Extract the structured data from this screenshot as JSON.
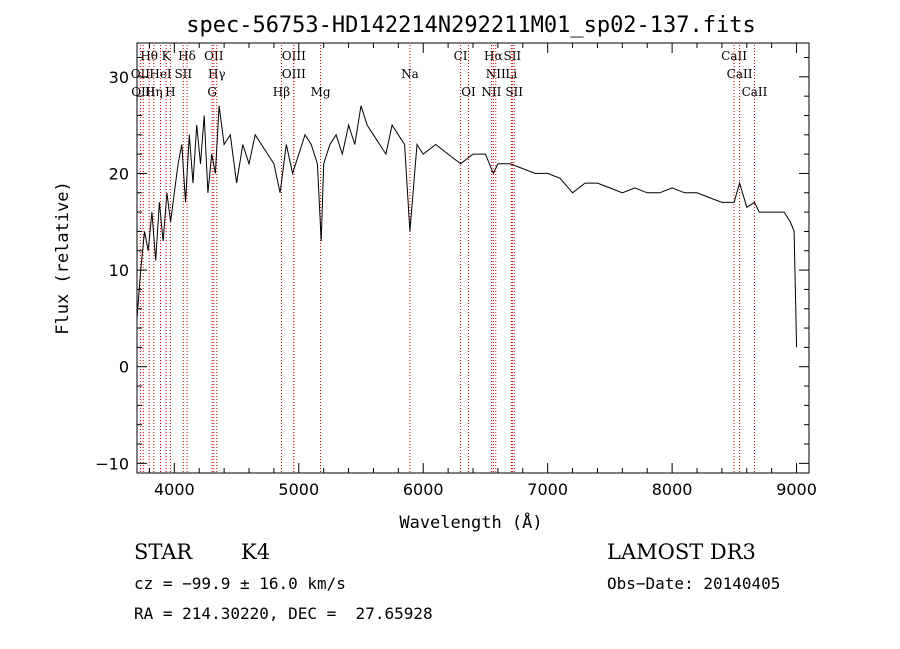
{
  "chart_data": {
    "type": "line",
    "title": "spec-56753-HD142214N292211M01_sp02-137.fits",
    "xlabel": "Wavelength (Å)",
    "ylabel": "Flux (relative)",
    "xlim": [
      3700,
      9100
    ],
    "ylim": [
      -11,
      33.5
    ],
    "xticks": [
      4000,
      5000,
      6000,
      7000,
      8000,
      9000
    ],
    "yticks": [
      -10,
      0,
      10,
      20,
      30
    ],
    "spectrum": {
      "wavelength": [
        3700,
        3730,
        3760,
        3790,
        3820,
        3850,
        3880,
        3910,
        3940,
        3970,
        4000,
        4030,
        4060,
        4090,
        4120,
        4150,
        4180,
        4210,
        4240,
        4270,
        4300,
        4330,
        4360,
        4400,
        4450,
        4500,
        4550,
        4600,
        4650,
        4700,
        4750,
        4800,
        4850,
        4900,
        4950,
        5000,
        5050,
        5100,
        5150,
        5180,
        5200,
        5250,
        5300,
        5350,
        5400,
        5450,
        5500,
        5550,
        5600,
        5650,
        5700,
        5750,
        5800,
        5850,
        5893,
        5950,
        6000,
        6100,
        6200,
        6300,
        6400,
        6500,
        6563,
        6600,
        6700,
        6800,
        6900,
        7000,
        7100,
        7200,
        7300,
        7400,
        7500,
        7600,
        7700,
        7800,
        7900,
        8000,
        8100,
        8200,
        8300,
        8400,
        8498,
        8542,
        8600,
        8662,
        8700,
        8800,
        8900,
        8950,
        8980,
        9000
      ],
      "flux": [
        5,
        10,
        14,
        12,
        16,
        11,
        17,
        13,
        18,
        15,
        18,
        21,
        23,
        17,
        24,
        19,
        25,
        21,
        26,
        18,
        22,
        20,
        27,
        23,
        24,
        19,
        23,
        21,
        24,
        23,
        22,
        21,
        18,
        23,
        20,
        22,
        24,
        23,
        21,
        13,
        21,
        23,
        24,
        22,
        25,
        23,
        27,
        25,
        24,
        23,
        22,
        25,
        24,
        23,
        14,
        23,
        22,
        23,
        22,
        21,
        22,
        22,
        20,
        21,
        21,
        20.5,
        20,
        20,
        19.5,
        18,
        19,
        19,
        18.5,
        18,
        18.5,
        18,
        18,
        18.5,
        18,
        18,
        17.5,
        17,
        17,
        19,
        16.5,
        17,
        16,
        16,
        16,
        15,
        14,
        2
      ]
    },
    "spectral_lines": [
      {
        "name": "Hθ",
        "wavelength": 3798,
        "row": 1
      },
      {
        "name": "K",
        "wavelength": 3934,
        "row": 1
      },
      {
        "name": "Hδ",
        "wavelength": 4102,
        "row": 1
      },
      {
        "name": "OII",
        "wavelength": 4317,
        "row": 1
      },
      {
        "name": "OIII",
        "wavelength": 4960,
        "row": 1
      },
      {
        "name": "CI",
        "wavelength": 6300,
        "row": 1
      },
      {
        "name": "Hα",
        "wavelength": 6563,
        "row": 1
      },
      {
        "name": "SII",
        "wavelength": 6716,
        "row": 1
      },
      {
        "name": "CaII",
        "wavelength": 8498,
        "row": 1
      },
      {
        "name": "OII",
        "wavelength": 3727,
        "row": 2
      },
      {
        "name": "HeI",
        "wavelength": 3889,
        "row": 2
      },
      {
        "name": "SII",
        "wavelength": 4072,
        "row": 2
      },
      {
        "name": "Hγ",
        "wavelength": 4341,
        "row": 2
      },
      {
        "name": "OIII",
        "wavelength": 4960,
        "row": 2
      },
      {
        "name": "Na",
        "wavelength": 5893,
        "row": 2
      },
      {
        "name": "NII",
        "wavelength": 6583,
        "row": 2
      },
      {
        "name": "Li",
        "wavelength": 6708,
        "row": 2
      },
      {
        "name": "CaII",
        "wavelength": 8542,
        "row": 2
      },
      {
        "name": "OIII",
        "wavelength": 3750,
        "row": 3
      },
      {
        "name": "Hη",
        "wavelength": 3835,
        "row": 3
      },
      {
        "name": "H",
        "wavelength": 3968,
        "row": 3
      },
      {
        "name": "G",
        "wavelength": 4304,
        "row": 3
      },
      {
        "name": "Hβ",
        "wavelength": 4861,
        "row": 3
      },
      {
        "name": "Mg",
        "wavelength": 5175,
        "row": 3
      },
      {
        "name": "OI",
        "wavelength": 6364,
        "row": 3
      },
      {
        "name": "NII",
        "wavelength": 6548,
        "row": 3
      },
      {
        "name": "SII",
        "wavelength": 6731,
        "row": 3
      },
      {
        "name": "CaII",
        "wavelength": 8662,
        "row": 3
      }
    ]
  },
  "info": {
    "class_label": "STAR",
    "subclass": "K4",
    "survey": "LAMOST DR3",
    "cz": "cz = −99.9 ± 16.0 km/s",
    "obs_date": "Obs−Date: 20140405",
    "coords": "RA = 214.30220, DEC =  27.65928"
  }
}
